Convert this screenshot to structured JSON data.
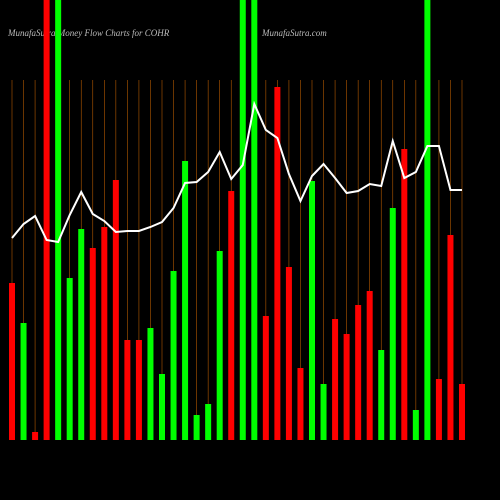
{
  "chart_data": {
    "type": "bar",
    "title": "MunafaSutra Money Flow Charts for COHR",
    "subtitle": "MunafaSutra.com",
    "categories": [
      null,
      null,
      null,
      null,
      null,
      null,
      null,
      null,
      null,
      null,
      null,
      null,
      null,
      null,
      null,
      null,
      null,
      null,
      null,
      null,
      null,
      null,
      null,
      null,
      null,
      null,
      null,
      null,
      null,
      null,
      null,
      null,
      null,
      null,
      null,
      null,
      null,
      null,
      null,
      null
    ],
    "values": [
      157,
      117,
      8,
      440,
      440,
      162,
      211,
      192,
      213,
      260,
      100,
      100,
      112,
      66,
      169,
      279,
      25,
      36,
      189,
      249,
      440,
      440,
      124,
      353,
      173,
      72,
      259,
      56,
      121,
      106,
      135,
      149,
      90,
      232,
      291,
      30,
      440,
      61,
      205,
      56
    ],
    "bar_colors": [
      "#ff0000",
      "#00ff00",
      "#ff0000",
      "#ff0000",
      "#00ff00",
      "#00ff00",
      "#00ff00",
      "#ff0000",
      "#ff0000",
      "#ff0000",
      "#ff0000",
      "#ff0000",
      "#00ff00",
      "#00ff00",
      "#00ff00",
      "#00ff00",
      "#00ff00",
      "#00ff00",
      "#00ff00",
      "#ff0000",
      "#00ff00",
      "#00ff00",
      "#ff0000",
      "#ff0000",
      "#ff0000",
      "#ff0000",
      "#00ff00",
      "#00ff00",
      "#ff0000",
      "#ff0000",
      "#ff0000",
      "#ff0000",
      "#00ff00",
      "#00ff00",
      "#ff0000",
      "#00ff00",
      "#00ff00",
      "#ff0000",
      "#ff0000",
      "#ff0000"
    ],
    "line": {
      "color": "#ffffff",
      "values": [
        202,
        216,
        224,
        200,
        198,
        225,
        248,
        226,
        219,
        208,
        209,
        209,
        213,
        218,
        232,
        257,
        258,
        268,
        288,
        261,
        275,
        336,
        310,
        302,
        266,
        239,
        264,
        276,
        262,
        247,
        249,
        256,
        254,
        299,
        262,
        268,
        294,
        294,
        250,
        250
      ]
    },
    "ylim": [
      0,
      440
    ],
    "grid_color": "#b35900"
  }
}
